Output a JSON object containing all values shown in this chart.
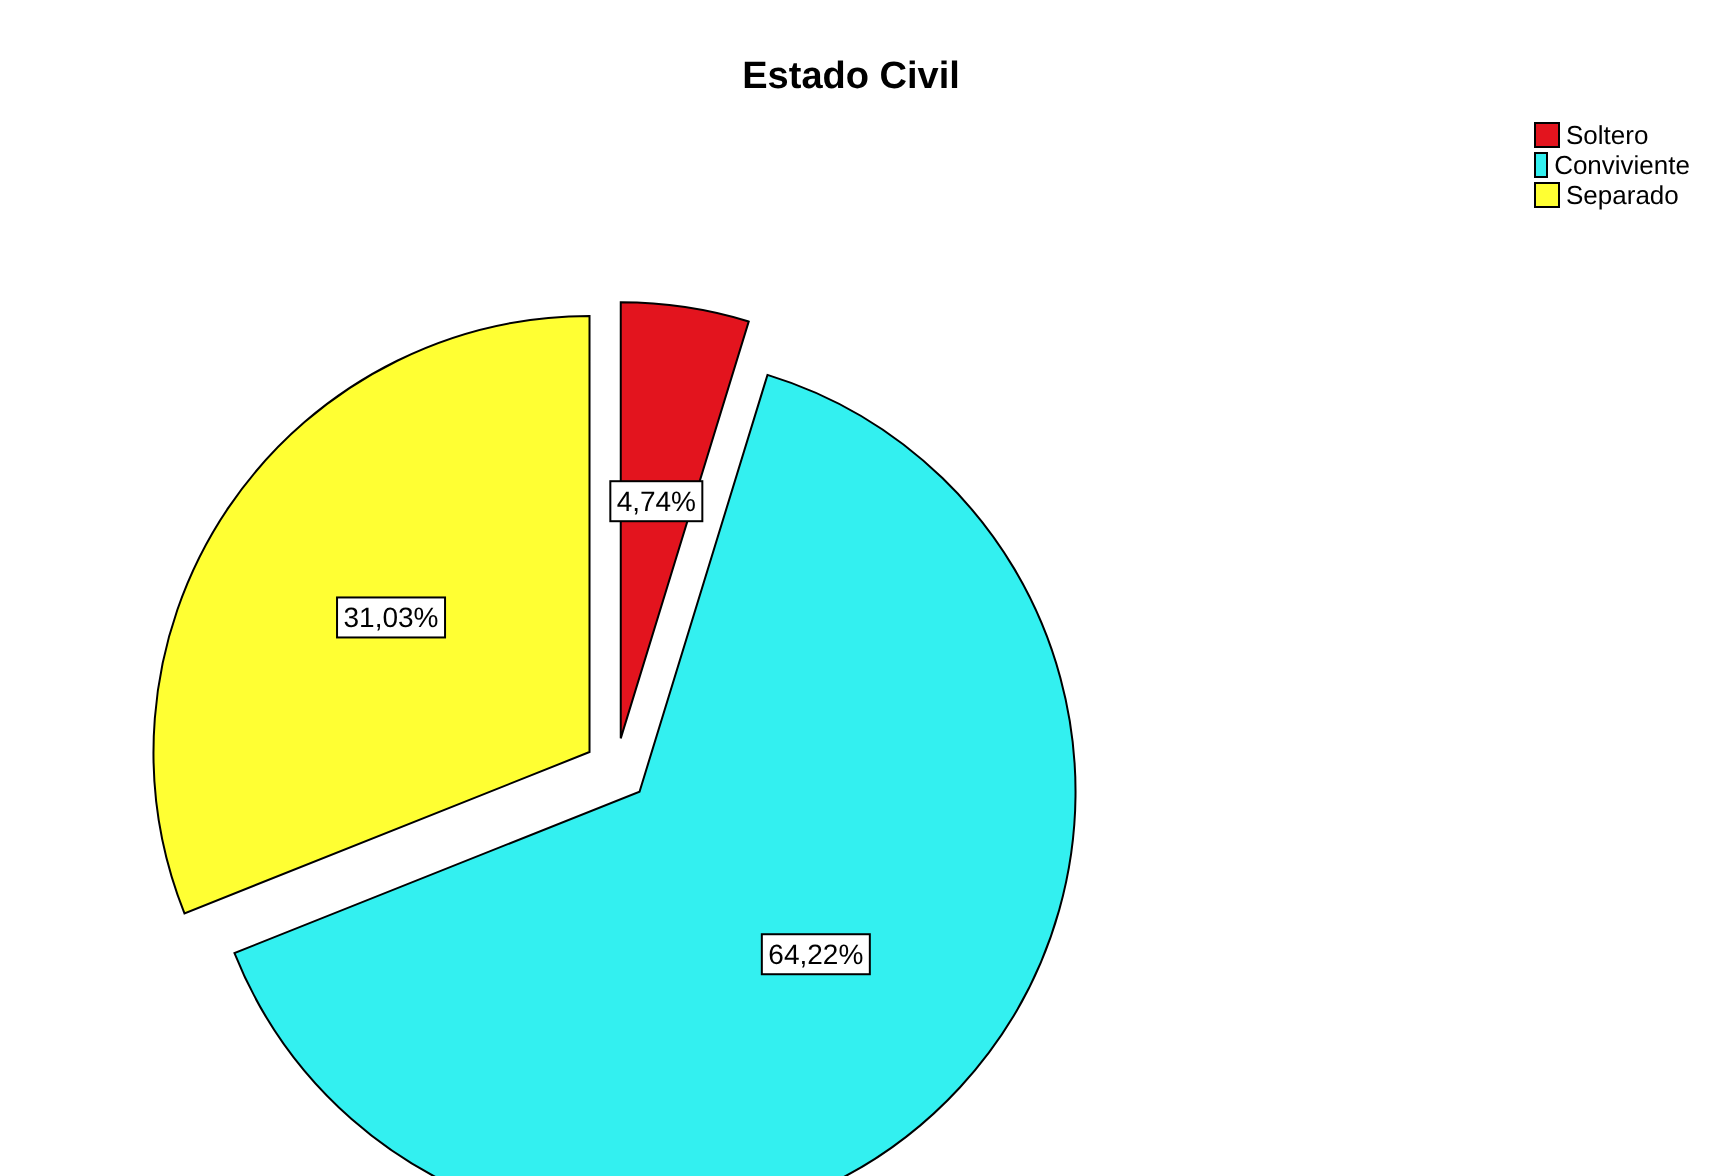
{
  "chart_data": {
    "type": "pie",
    "title": "Estado Civil",
    "categories": [
      "Soltero",
      "Conviviente",
      "Separado"
    ],
    "values": [
      4.74,
      64.22,
      31.03
    ],
    "value_labels": [
      "4,74%",
      "64,22%",
      "31,03%"
    ],
    "colors": [
      "#e3141e",
      "#33f0f0",
      "#ffff33"
    ],
    "legend": "top right"
  }
}
